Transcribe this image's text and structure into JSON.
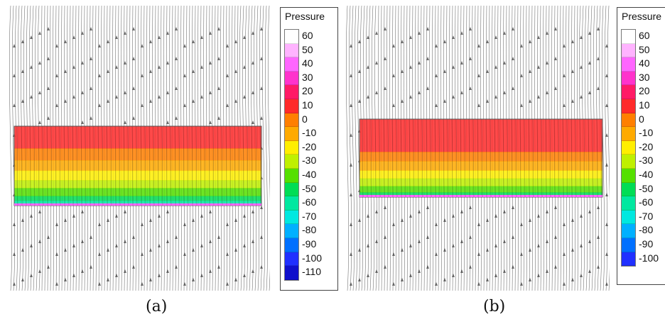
{
  "figures": [
    {
      "caption": "(a)",
      "legend": {
        "title": "Pressure",
        "levels": [
          "60",
          "50",
          "40",
          "30",
          "20",
          "10",
          "0",
          "-10",
          "-20",
          "-30",
          "-40",
          "-50",
          "-60",
          "-70",
          "-80",
          "-90",
          "-100",
          "-110"
        ]
      }
    },
    {
      "caption": "(b)",
      "legend": {
        "title": "Pressure",
        "levels": [
          "60",
          "50",
          "40",
          "30",
          "20",
          "10",
          "0",
          "-10",
          "-20",
          "-30",
          "-40",
          "-50",
          "-60",
          "-70",
          "-80",
          "-90",
          "-100"
        ]
      }
    }
  ],
  "colors": {
    "60": "#ffffff",
    "50": "#ffb3ff",
    "40": "#ff66ff",
    "30": "#ff33cc",
    "20": "#ff1a66",
    "10": "#ff2a2a",
    "0": "#ff7f00",
    "-10": "#ffaa00",
    "-20": "#ffee00",
    "-30": "#bff000",
    "-40": "#55e000",
    "-50": "#00dd55",
    "-60": "#00e8a0",
    "-70": "#00e8e0",
    "-80": "#00b0ff",
    "-90": "#0070ff",
    "-100": "#2030ff",
    "-110": "#1010cc"
  }
}
